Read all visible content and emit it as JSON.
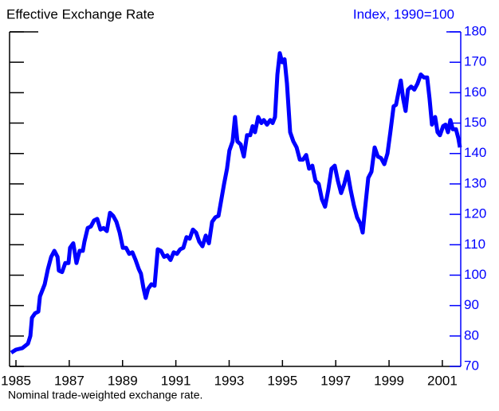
{
  "chart_data": {
    "type": "line",
    "title": "Effective Exchange Rate",
    "y2label": "Index, 1990=100",
    "note": "Nominal trade-weighted exchange rate.",
    "x": [
      1984.82,
      1985.0,
      1985.24,
      1985.45,
      1985.54,
      1985.6,
      1985.72,
      1985.84,
      1985.9,
      1986.08,
      1986.2,
      1986.32,
      1986.44,
      1986.56,
      1986.61,
      1986.73,
      1986.85,
      1986.97,
      1987.03,
      1987.15,
      1987.27,
      1987.39,
      1987.51,
      1987.57,
      1987.69,
      1987.81,
      1987.93,
      1988.05,
      1988.17,
      1988.29,
      1988.41,
      1988.53,
      1988.65,
      1988.77,
      1988.89,
      1989.01,
      1989.13,
      1989.25,
      1989.37,
      1989.49,
      1989.61,
      1989.69,
      1989.78,
      1989.87,
      1989.96,
      1990.08,
      1990.2,
      1990.32,
      1990.44,
      1990.56,
      1990.68,
      1990.8,
      1990.92,
      1991.04,
      1991.16,
      1991.28,
      1991.4,
      1991.52,
      1991.64,
      1991.76,
      1991.88,
      1992.0,
      1992.12,
      1992.24,
      1992.36,
      1992.48,
      1992.6,
      1992.69,
      1992.81,
      1992.92,
      1993.01,
      1993.13,
      1993.22,
      1993.31,
      1993.43,
      1993.55,
      1993.67,
      1993.79,
      1993.88,
      1993.97,
      1994.09,
      1994.21,
      1994.3,
      1994.42,
      1994.54,
      1994.63,
      1994.72,
      1994.81,
      1994.9,
      1994.99,
      1995.08,
      1995.17,
      1995.29,
      1995.41,
      1995.53,
      1995.65,
      1995.77,
      1995.89,
      1996.0,
      1996.12,
      1996.24,
      1996.36,
      1996.48,
      1996.6,
      1996.72,
      1996.84,
      1996.96,
      1997.08,
      1997.2,
      1997.32,
      1997.44,
      1997.56,
      1997.68,
      1997.8,
      1997.92,
      1998.01,
      1998.1,
      1998.22,
      1998.34,
      1998.46,
      1998.58,
      1998.7,
      1998.82,
      1998.94,
      1999.05,
      1999.17,
      1999.26,
      1999.35,
      1999.44,
      1999.53,
      1999.62,
      1999.71,
      1999.83,
      1999.95,
      2000.07,
      2000.19,
      2000.31,
      2000.43,
      2000.52,
      2000.61,
      2000.73,
      2000.82,
      2000.91,
      2001.03,
      2001.12,
      2001.21,
      2001.3,
      2001.39,
      2001.51,
      2001.6,
      2001.66
    ],
    "series": [
      {
        "color": "#0000ff",
        "axis": "y2",
        "values": [
          74.5,
          75.5,
          76,
          77.5,
          80,
          86,
          87.5,
          88,
          93,
          97,
          102,
          106,
          108,
          106,
          101.5,
          101,
          104,
          104,
          109,
          110.5,
          104,
          108,
          108,
          111,
          115.5,
          116,
          118,
          118.5,
          115,
          115.5,
          114.5,
          120.5,
          119.5,
          117.5,
          114,
          109,
          109,
          107,
          107.5,
          105,
          102,
          100.5,
          96,
          92.5,
          95.5,
          97,
          96.5,
          108.5,
          108,
          106,
          106.5,
          105,
          107.5,
          107,
          108.5,
          109,
          112.5,
          112,
          115,
          114,
          111,
          109.5,
          113,
          110.5,
          117.5,
          119,
          119.5,
          124,
          130,
          135,
          141,
          144,
          152,
          144,
          143,
          139,
          146,
          146,
          149,
          147,
          152,
          150,
          151,
          149.5,
          151,
          150,
          152,
          166,
          173,
          170,
          171,
          163,
          147,
          144,
          142,
          138,
          138,
          139.5,
          135,
          136,
          131,
          130,
          125,
          122.5,
          128,
          135,
          136,
          131,
          127,
          130,
          134,
          128,
          123,
          119,
          117,
          114,
          122,
          132,
          134,
          142,
          139,
          138.5,
          136.5,
          140,
          147,
          155.5,
          156,
          160,
          164,
          158,
          154,
          161,
          162,
          161,
          163,
          166,
          165,
          165,
          158,
          149.5,
          152,
          147,
          146,
          149,
          149.5,
          147,
          151,
          148,
          148,
          145,
          142
        ]
      }
    ],
    "xlim": [
      1984.76,
      2001.69
    ],
    "xticks": [
      1985,
      1987,
      1989,
      1991,
      1993,
      1995,
      1997,
      1999,
      2001
    ],
    "y2lim": [
      70,
      180
    ],
    "y2ticks": [
      70,
      80,
      90,
      100,
      110,
      120,
      130,
      140,
      150,
      160,
      170,
      180
    ],
    "axis_color": "#0000ff"
  }
}
